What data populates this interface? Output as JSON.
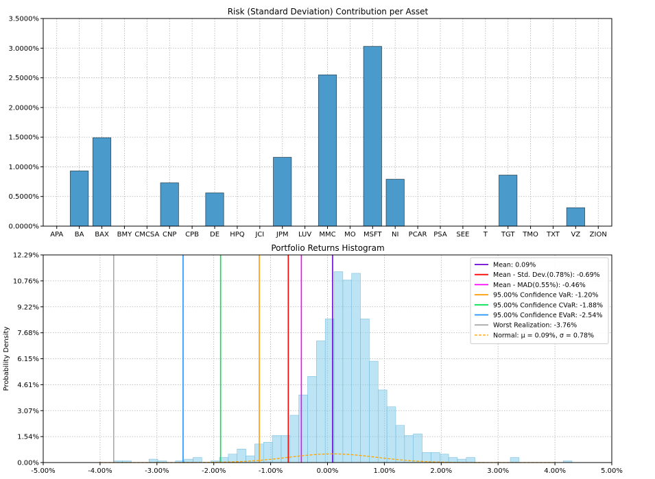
{
  "chart_data": [
    {
      "type": "bar",
      "title": "Risk (Standard Deviation) Contribution per Asset",
      "xlabel": "",
      "ylabel": "",
      "ylim": [
        0,
        3.5
      ],
      "y_ticks": [
        "0.0000%",
        "0.5000%",
        "1.0000%",
        "1.5000%",
        "2.0000%",
        "2.5000%",
        "3.0000%",
        "3.5000%"
      ],
      "grid": true,
      "bar_color": "#4a9acb",
      "categories": [
        "APA",
        "BA",
        "BAX",
        "BMY",
        "CMCSA",
        "CNP",
        "CPB",
        "DE",
        "HPQ",
        "JCI",
        "JPM",
        "LUV",
        "MMC",
        "MO",
        "MSFT",
        "NI",
        "PCAR",
        "PSA",
        "SEE",
        "T",
        "TGT",
        "TMO",
        "TXT",
        "VZ",
        "ZION"
      ],
      "values": [
        0,
        0.93,
        1.49,
        0,
        0,
        0.73,
        0,
        0.56,
        0,
        0,
        1.16,
        0,
        2.55,
        0,
        3.03,
        0.79,
        0,
        0,
        0,
        0,
        0.86,
        0,
        0,
        0.31,
        0
      ]
    },
    {
      "type": "histogram",
      "title": "Portfolio Returns Histogram",
      "xlabel": "",
      "ylabel": "Probability Density",
      "xlim": [
        -5,
        5
      ],
      "ylim": [
        0,
        12.29
      ],
      "x_ticks": [
        "-5.00%",
        "-4.00%",
        "-3.00%",
        "-2.00%",
        "-1.00%",
        "0.00%",
        "1.00%",
        "2.00%",
        "3.00%",
        "4.00%",
        "5.00%"
      ],
      "y_ticks": [
        "0.00%",
        "1.54%",
        "3.07%",
        "4.61%",
        "6.15%",
        "7.68%",
        "9.22%",
        "10.76%",
        "12.29%"
      ],
      "grid": true,
      "legend_position": "top-right",
      "bar_color": "#87ceeb",
      "bin_start": -3.76,
      "bin_width": 0.155,
      "densities": [
        0.1,
        0.1,
        0,
        0,
        0.2,
        0.1,
        0,
        0.1,
        0.2,
        0.3,
        0,
        0.1,
        0.3,
        0.5,
        0.8,
        0.4,
        1.1,
        1.2,
        1.6,
        1.6,
        2.8,
        4.0,
        5.1,
        7.2,
        8.5,
        11.3,
        10.8,
        11.2,
        8.5,
        6.0,
        4.3,
        3.3,
        2.2,
        1.6,
        1.7,
        0.6,
        0.6,
        0.5,
        0.3,
        0.2,
        0.3,
        0,
        0,
        0,
        0,
        0.3,
        0,
        0,
        0,
        0,
        0,
        0.1
      ],
      "lines": [
        {
          "label": "Mean: 0.09%",
          "x": 0.09,
          "color": "#6a00d8"
        },
        {
          "label": "Mean - Std. Dev.(0.78%): -0.69%",
          "x": -0.69,
          "color": "#ff0000"
        },
        {
          "label": "Mean - MAD(0.55%): -0.46%",
          "x": -0.46,
          "color": "#ff00ff"
        },
        {
          "label": "95.00% Confidence VaR: -1.20%",
          "x": -1.2,
          "color": "#ff9900"
        },
        {
          "label": "95.00% Confidence CVaR: -1.88%",
          "x": -1.88,
          "color": "#00e050"
        },
        {
          "label": "95.00% Confidence EVaR: -2.54%",
          "x": -2.54,
          "color": "#1e90ff"
        },
        {
          "label": "Worst Realization: -3.76%",
          "x": -3.76,
          "color": "#aaaaaa"
        }
      ],
      "normal": {
        "label": "Normal: μ = 0.09%, σ = 0.78%",
        "mu": 0.09,
        "sigma": 0.78,
        "color": "#ffa500"
      }
    }
  ]
}
